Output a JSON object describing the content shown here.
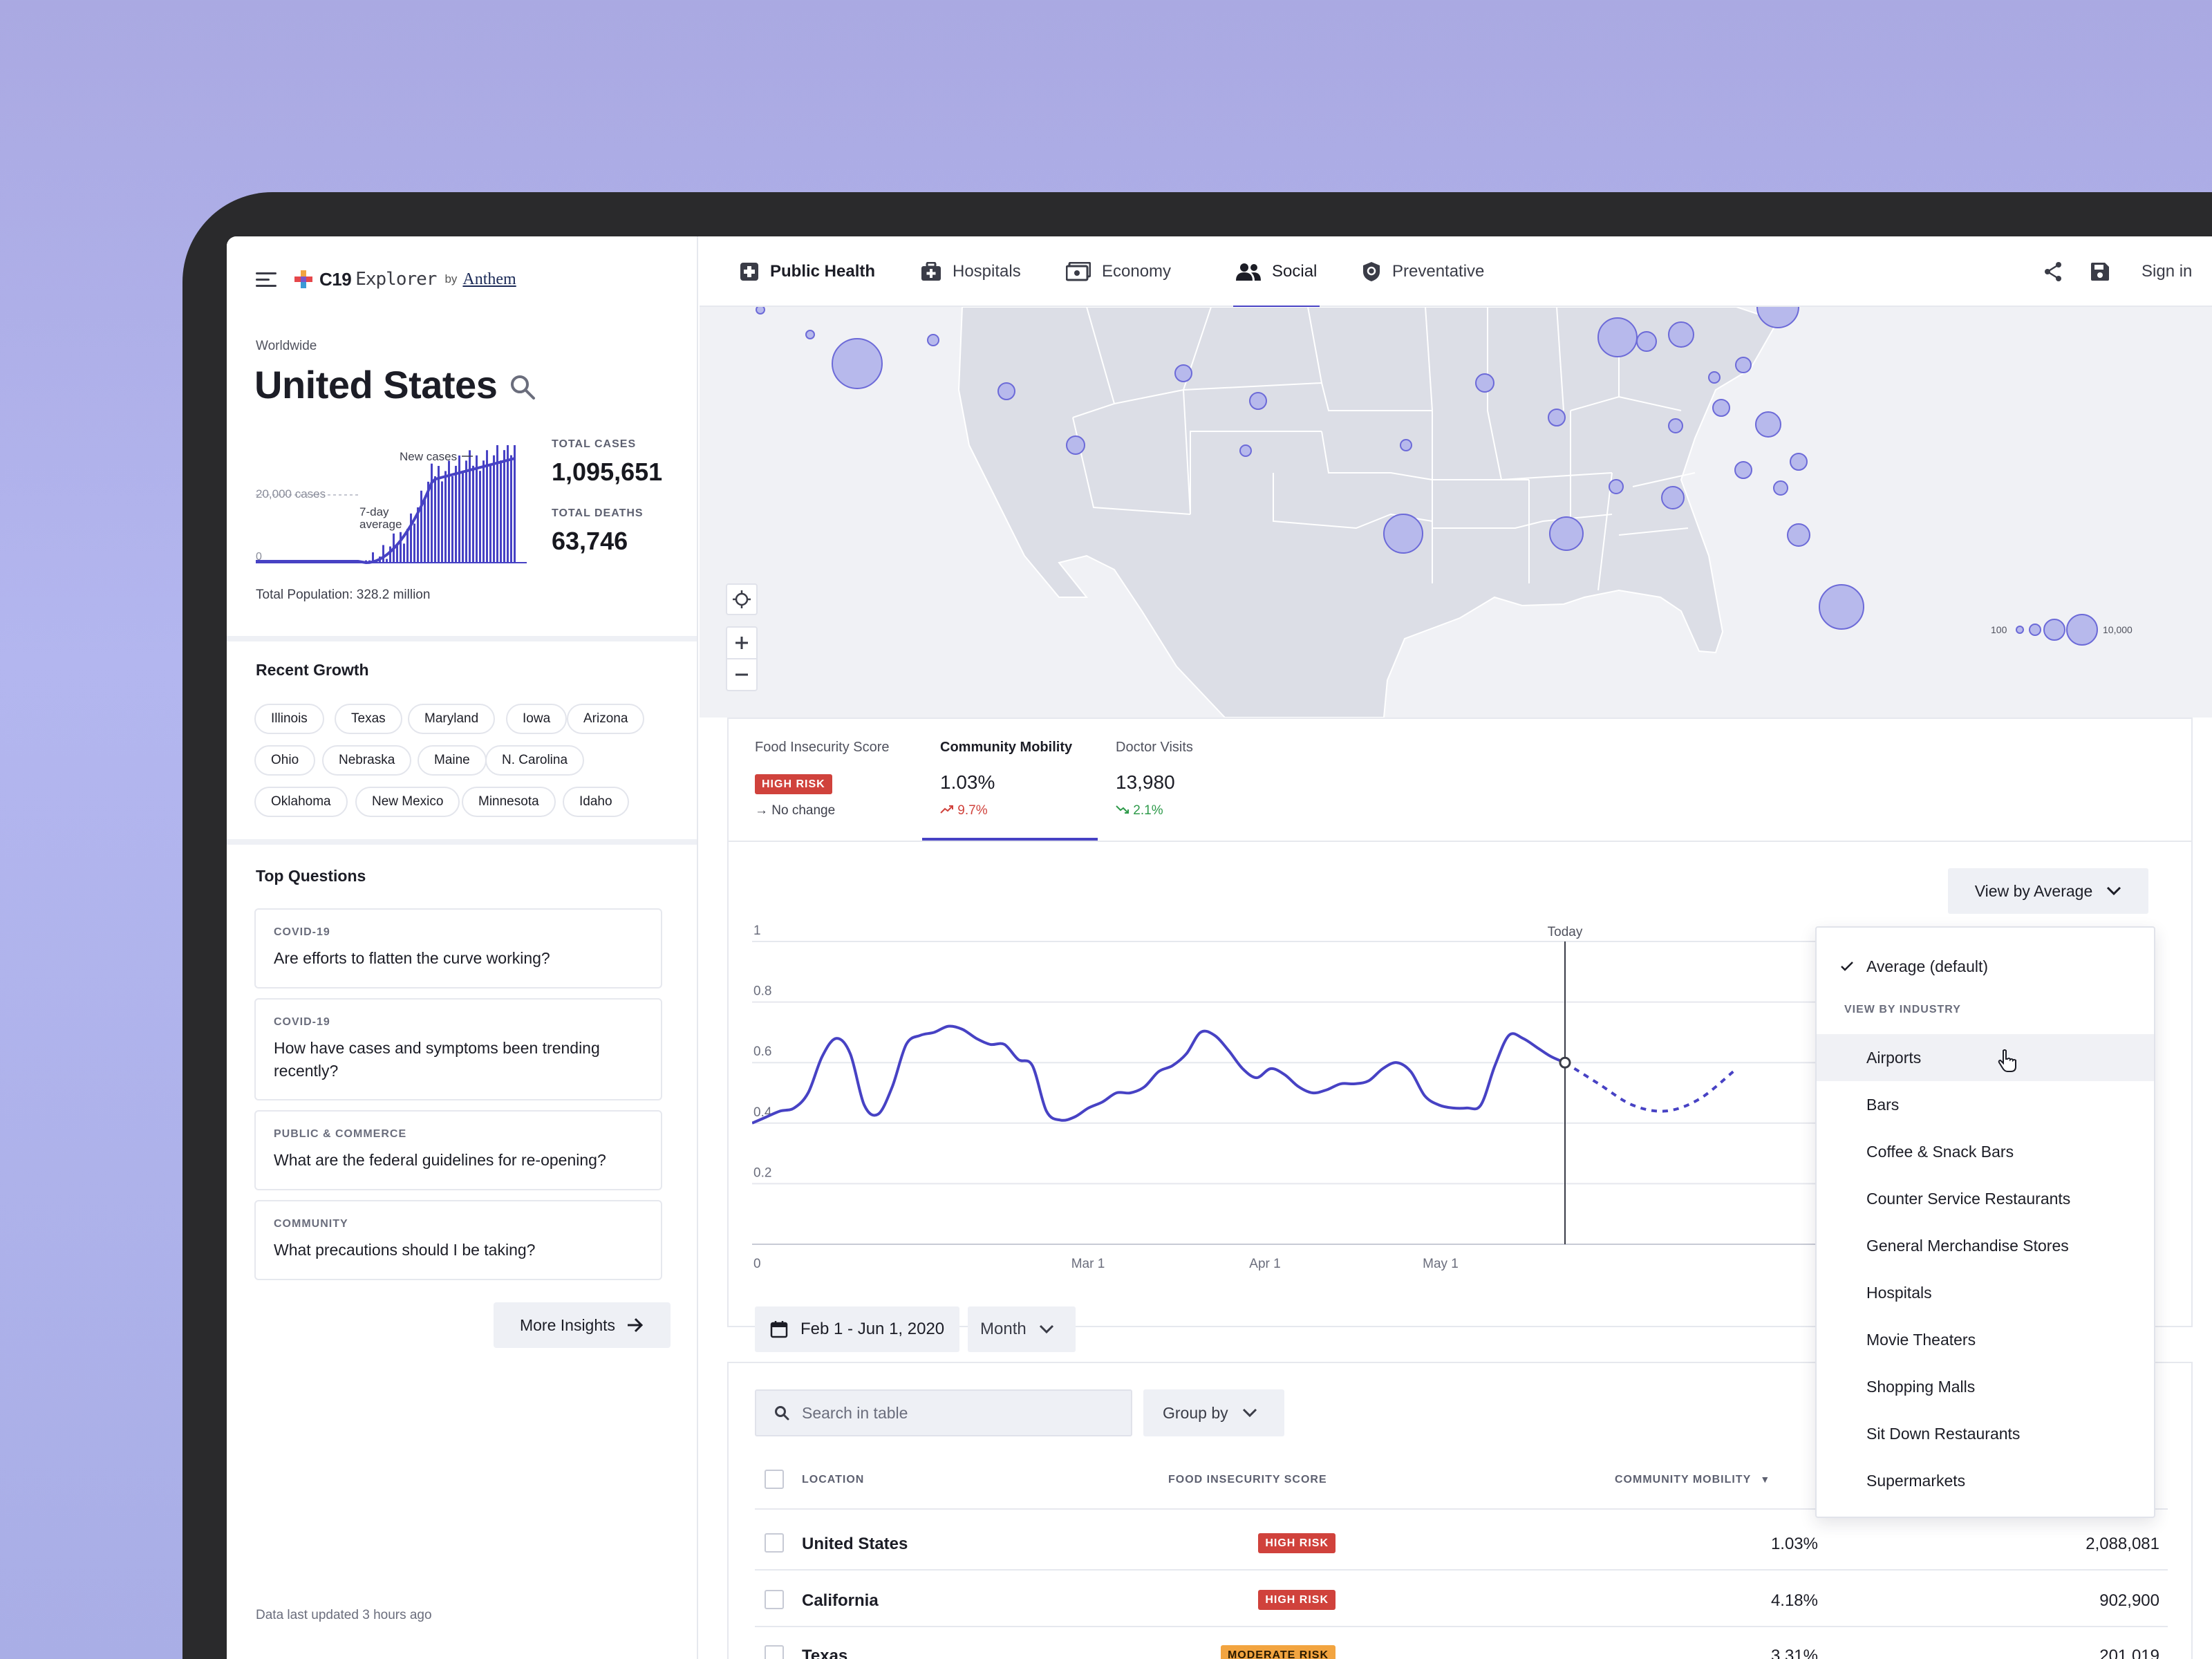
{
  "brand": {
    "name": "C19",
    "name2": "Explorer",
    "by": "by",
    "partner": "Anthem"
  },
  "sidebar": {
    "region_caption": "Worldwide",
    "country": "United States",
    "mini_chart": {
      "new_cases_label": "New cases",
      "avg_label_line1": "7-day",
      "avg_label_line2": "average",
      "y_tick_top": "20,000 cases",
      "y_tick_zero": "0"
    },
    "stats": {
      "total_cases_label": "TOTAL CASES",
      "total_cases": "1,095,651",
      "total_deaths_label": "TOTAL DEATHS",
      "total_deaths": "63,746"
    },
    "population": "Total Population: 328.2 million",
    "recent_growth": {
      "title": "Recent Growth",
      "chips": [
        "Illinois",
        "Texas",
        "Maryland",
        "Iowa",
        "Arizona",
        "Ohio",
        "Nebraska",
        "Maine",
        "N. Carolina",
        "Oklahoma",
        "New Mexico",
        "Minnesota",
        "Idaho"
      ]
    },
    "top_questions": {
      "title": "Top Questions",
      "items": [
        {
          "category": "COVID-19",
          "question": "Are efforts to flatten the curve working?"
        },
        {
          "category": "COVID-19",
          "question": "How have cases and symptoms been trending recently?"
        },
        {
          "category": "PUBLIC & COMMERCE",
          "question": "What are the federal guidelines for re-opening?"
        },
        {
          "category": "COMMUNITY",
          "question": "What precautions should I be taking?"
        }
      ],
      "more_label": "More Insights"
    },
    "updated": "Data last updated 3 hours ago"
  },
  "nav": {
    "tabs": [
      {
        "label": "Public Health",
        "icon": "medical-cross-icon"
      },
      {
        "label": "Hospitals",
        "icon": "medical-bag-icon"
      },
      {
        "label": "Economy",
        "icon": "money-icon"
      },
      {
        "label": "Social",
        "icon": "people-icon",
        "active": true
      },
      {
        "label": "Preventative",
        "icon": "shield-icon"
      }
    ],
    "sign_in": "Sign in"
  },
  "map": {
    "legend_min": "100",
    "legend_max": "10,000",
    "bubble_color": "#b7b9ec"
  },
  "metrics": {
    "items": [
      {
        "label": "Food Insecurity Score",
        "value": "HIGH RISK",
        "change": "No change"
      },
      {
        "label": "Community Mobility",
        "value": "1.03%",
        "change": "9.7%",
        "trend": "up"
      },
      {
        "label": "Doctor Visits",
        "value": "13,980",
        "change": "2.1%",
        "trend": "down"
      }
    ],
    "view_by_label": "View by Average",
    "date_range": "Feb 1 - Jun 1, 2020",
    "period": "Month"
  },
  "chart_data": {
    "type": "line",
    "title": "",
    "xlabel": "",
    "ylabel": "",
    "ylim": [
      0,
      1
    ],
    "yticks": [
      "0",
      "0.2",
      "0.4",
      "0.6",
      "0.8",
      "1"
    ],
    "xticks": [
      "Mar 1",
      "Apr 1",
      "May 1"
    ],
    "marker_label": "Today",
    "series": [
      {
        "values": [
          0.4,
          0.42,
          0.44,
          0.45,
          0.5,
          0.62,
          0.68,
          0.63,
          0.46,
          0.43,
          0.52,
          0.66,
          0.69,
          0.7,
          0.72,
          0.71,
          0.68,
          0.66,
          0.66,
          0.61,
          0.59,
          0.44,
          0.41,
          0.42,
          0.45,
          0.47,
          0.5,
          0.5,
          0.52,
          0.57,
          0.59,
          0.63,
          0.7,
          0.69,
          0.64,
          0.58,
          0.55,
          0.58,
          0.56,
          0.52,
          0.5,
          0.51,
          0.53,
          0.53,
          0.54,
          0.58,
          0.6,
          0.57,
          0.49,
          0.46,
          0.45,
          0.45,
          0.46,
          0.59,
          0.69,
          0.68,
          0.65,
          0.62,
          0.6
        ],
        "projection": [
          0.6,
          0.53,
          0.46,
          0.44,
          0.48,
          0.57
        ]
      }
    ]
  },
  "table": {
    "search_placeholder": "Search in table",
    "group_by": "Group by",
    "columns": [
      "LOCATION",
      "FOOD INSECURITY SCORE",
      "COMMUNITY MOBILITY"
    ],
    "rows": [
      {
        "location": "United States",
        "risk": "HIGH RISK",
        "mobility": "1.03%",
        "visits": "2,088,081"
      },
      {
        "location": "California",
        "risk": "HIGH RISK",
        "mobility": "4.18%",
        "visits": "902,900"
      },
      {
        "location": "Texas",
        "risk": "MODERATE RISK",
        "mobility": "3.31%",
        "visits": "201,019"
      }
    ]
  },
  "dropdown": {
    "selected": "Average (default)",
    "caption": "VIEW BY INDUSTRY",
    "items": [
      "Airports",
      "Bars",
      "Coffee & Snack Bars",
      "Counter Service Restaurants",
      "General Merchandise Stores",
      "Hospitals",
      "Movie Theaters",
      "Shopping Malls",
      "Sit Down Restaurants",
      "Supermarkets"
    ],
    "hovered": "Airports"
  },
  "colors": {
    "accent": "#4742c4",
    "high_risk": "#d0423c",
    "moderate_risk": "#f2a440",
    "trend_up": "#d0423c",
    "trend_down": "#2e9a4a"
  }
}
